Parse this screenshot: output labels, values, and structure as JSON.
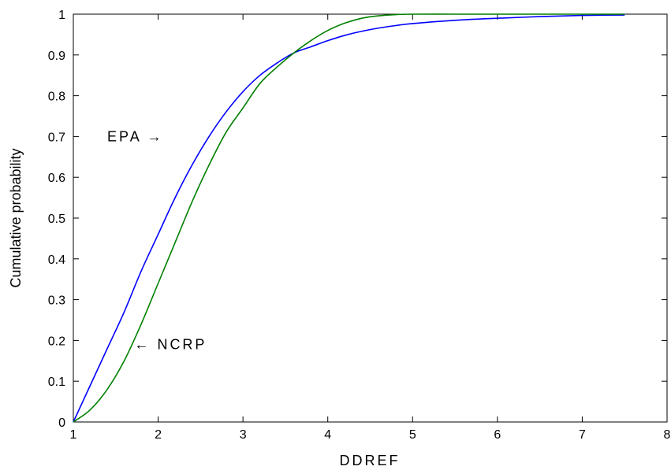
{
  "chart_data": {
    "type": "line",
    "title": "",
    "xlabel": "DDREF",
    "ylabel": "Cumulative probability",
    "xlim": [
      1,
      8
    ],
    "ylim": [
      0,
      1
    ],
    "xticks": [
      1,
      2,
      3,
      4,
      5,
      6,
      7,
      8
    ],
    "yticks": [
      0,
      0.1,
      0.2,
      0.3,
      0.4,
      0.5,
      0.6,
      0.7,
      0.8,
      0.9,
      1
    ],
    "grid": false,
    "legend": "none",
    "series": [
      {
        "name": "EPA",
        "color": "#0000ff",
        "x": [
          1.0,
          1.2,
          1.4,
          1.6,
          1.8,
          2.0,
          2.2,
          2.4,
          2.6,
          2.8,
          3.0,
          3.2,
          3.4,
          3.6,
          3.8,
          4.0,
          4.2,
          4.4,
          4.6,
          4.8,
          5.0,
          5.5,
          6.0,
          6.5,
          7.0,
          7.5
        ],
        "y": [
          0.0,
          0.09,
          0.18,
          0.27,
          0.37,
          0.46,
          0.55,
          0.63,
          0.7,
          0.76,
          0.81,
          0.85,
          0.88,
          0.905,
          0.92,
          0.935,
          0.948,
          0.958,
          0.966,
          0.972,
          0.977,
          0.985,
          0.99,
          0.994,
          0.997,
          0.998
        ]
      },
      {
        "name": "NCRP",
        "color": "#008000",
        "x": [
          1.0,
          1.2,
          1.4,
          1.6,
          1.8,
          2.0,
          2.2,
          2.4,
          2.6,
          2.8,
          3.0,
          3.2,
          3.4,
          3.6,
          3.8,
          4.0,
          4.2,
          4.4,
          4.6,
          4.8,
          5.0,
          5.5,
          6.0,
          6.5,
          7.0,
          7.5
        ],
        "y": [
          0.0,
          0.03,
          0.08,
          0.15,
          0.24,
          0.34,
          0.44,
          0.54,
          0.63,
          0.71,
          0.77,
          0.83,
          0.87,
          0.905,
          0.935,
          0.96,
          0.978,
          0.99,
          0.996,
          0.999,
          1.0,
          1.0,
          1.0,
          1.0,
          1.0,
          1.0
        ]
      }
    ],
    "annotations": [
      {
        "text": "EPA",
        "arrow": "→",
        "x": 1.4,
        "y": 0.7
      },
      {
        "text": "NCRP",
        "arrow": "←",
        "x": 1.72,
        "y": 0.19
      }
    ]
  }
}
